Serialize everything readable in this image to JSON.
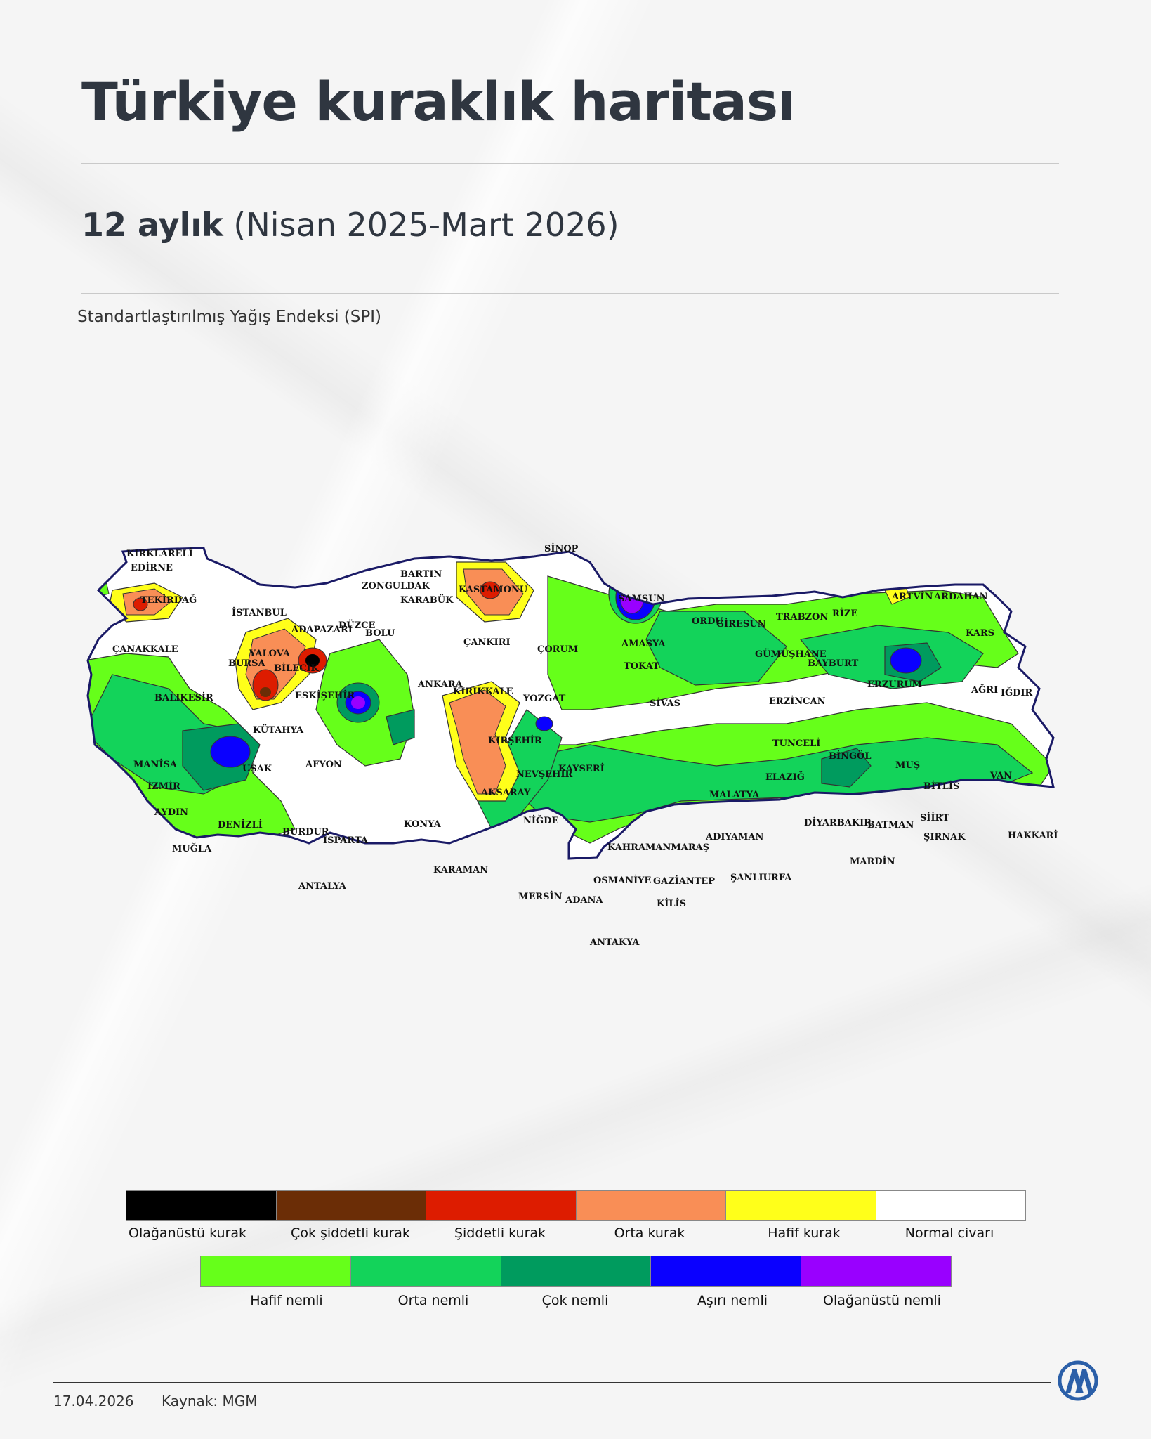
{
  "header": {
    "title": "Türkiye kuraklık haritası",
    "period_bold": "12 aylık",
    "period_range": "(Nisan 2025-Mart 2026)",
    "index_name": "Standartlaştırılmış Yağış Endeksi (SPI)"
  },
  "map": {
    "cities": [
      "KIRKLARELİ",
      "EDİRNE",
      "TEKİRDAĞ",
      "İSTANBUL",
      "ÇANAKKALE",
      "BALIKESİR",
      "YALOVA",
      "BURSA",
      "ADAPAZARI",
      "DÜZCE",
      "BOLU",
      "BİLECİK",
      "ESKİŞEHİR",
      "KÜTAHYA",
      "MANİSA",
      "İZMİR",
      "AYDIN",
      "DENİZLİ",
      "UŞAK",
      "AFYON",
      "MUĞLA",
      "BURDUR",
      "ISPARTA",
      "ANTALYA",
      "KONYA",
      "KARAMAN",
      "BARTIN",
      "ZONGULDAK",
      "KARABÜK",
      "KASTAMONU",
      "ÇANKIRI",
      "ANKARA",
      "KIRIKKALE",
      "KIRŞEHİR",
      "AKSARAY",
      "NEVŞEHİR",
      "NİĞDE",
      "KAYSERİ",
      "YOZGAT",
      "ÇORUM",
      "SİNOP",
      "SAMSUN",
      "AMASYA",
      "TOKAT",
      "SİVAS",
      "ORDU",
      "GİRESUN",
      "TRABZON",
      "RİZE",
      "ARTVİN",
      "ARDAHAN",
      "KARS",
      "ERZURUM",
      "AĞRI",
      "IĞDIR",
      "GÜMÜŞHANE",
      "BAYBURT",
      "ERZİNCAN",
      "TUNCELİ",
      "BİNGÖL",
      "MUŞ",
      "BİTLİS",
      "VAN",
      "MALATYA",
      "ELAZIĞ",
      "DİYARBAKIR",
      "BATMAN",
      "SİİRT",
      "ŞIRNAK",
      "HAKKARİ",
      "MARDİN",
      "ADIYAMAN",
      "ŞANLIURFA",
      "KAHRAMANMARAŞ",
      "OSMANİYE",
      "GAZİANTEP",
      "KİLİS",
      "ADANA",
      "MERSİN",
      "ANTAKYA"
    ]
  },
  "legend": {
    "dry": [
      {
        "label": "Olağanüstü kurak",
        "color": "#000000"
      },
      {
        "label": "Çok şiddetli kurak",
        "color": "#6b2d06"
      },
      {
        "label": "Şiddetli kurak",
        "color": "#dd1c00"
      },
      {
        "label": "Orta kurak",
        "color": "#f98e56"
      },
      {
        "label": "Hafif kurak",
        "color": "#ffff1a"
      },
      {
        "label": "Normal civarı",
        "color": "#ffffff"
      }
    ],
    "wet": [
      {
        "label": "Hafif nemli",
        "color": "#66ff1a"
      },
      {
        "label": "Orta nemli",
        "color": "#13d35a"
      },
      {
        "label": "Çok nemli",
        "color": "#009b5e"
      },
      {
        "label": "Aşırı nemli",
        "color": "#0a00ff"
      },
      {
        "label": "Olağanüstü nemli",
        "color": "#9900ff"
      }
    ]
  },
  "footer": {
    "date": "17.04.2026",
    "source": "Kaynak: MGM"
  }
}
